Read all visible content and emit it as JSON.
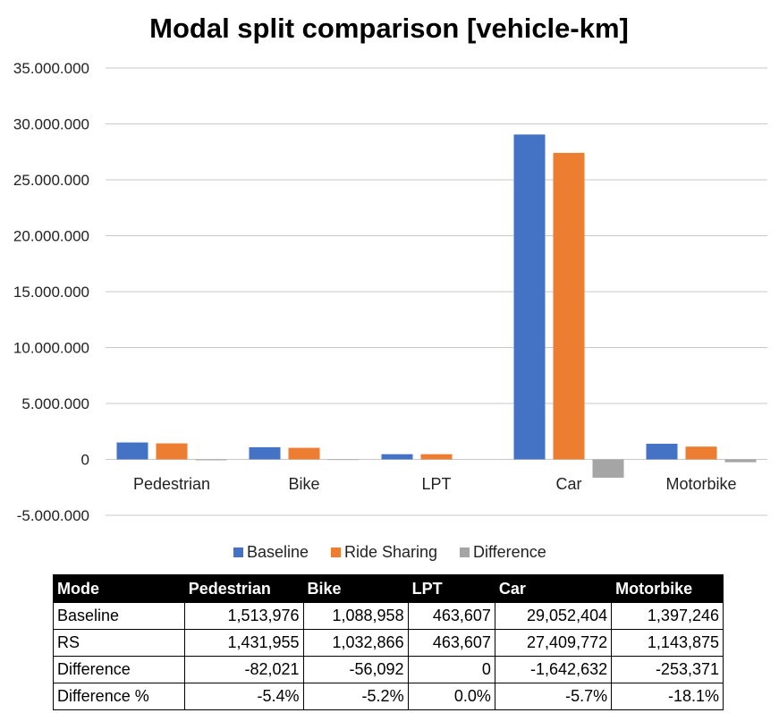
{
  "chart_data": {
    "type": "bar",
    "title": "Modal split comparison [vehicle-km]",
    "categories": [
      "Pedestrian",
      "Bike",
      "LPT",
      "Car",
      "Motorbike"
    ],
    "series": [
      {
        "name": "Baseline",
        "color": "#4472C4",
        "values": [
          1513976,
          1088958,
          463607,
          29052404,
          1397246
        ]
      },
      {
        "name": "Ride Sharing",
        "color": "#ED7D31",
        "values": [
          1431955,
          1032866,
          463607,
          27409772,
          1143875
        ]
      },
      {
        "name": "Difference",
        "color": "#A5A5A5",
        "values": [
          -82021,
          -56092,
          0,
          -1642632,
          -253371
        ]
      }
    ],
    "ylim": [
      -5000000,
      35000000
    ],
    "yticks": [
      35000000,
      30000000,
      25000000,
      20000000,
      15000000,
      10000000,
      5000000,
      0,
      -5000000
    ],
    "ytick_labels": [
      "35.000.000",
      "30.000.000",
      "25.000.000",
      "20.000.000",
      "15.000.000",
      "10.000.000",
      "5.000.000",
      "0",
      "-5.000.000"
    ],
    "grid": true,
    "legend_position": "bottom"
  },
  "table": {
    "headers": [
      "Mode",
      "Pedestrian",
      "Bike",
      "LPT",
      "Car",
      "Motorbike"
    ],
    "rows": [
      {
        "label": "Baseline",
        "cells": [
          "1,513,976",
          "1,088,958",
          "463,607",
          "29,052,404",
          "1,397,246"
        ]
      },
      {
        "label": "RS",
        "cells": [
          "1,431,955",
          "1,032,866",
          "463,607",
          "27,409,772",
          "1,143,875"
        ]
      },
      {
        "label": "Difference",
        "cells": [
          "-82,021",
          "-56,092",
          "0",
          "-1,642,632",
          "-253,371"
        ]
      },
      {
        "label": "Difference %",
        "cells": [
          "-5.4%",
          "-5.2%",
          "0.0%",
          "-5.7%",
          "-18.1%"
        ]
      }
    ]
  }
}
